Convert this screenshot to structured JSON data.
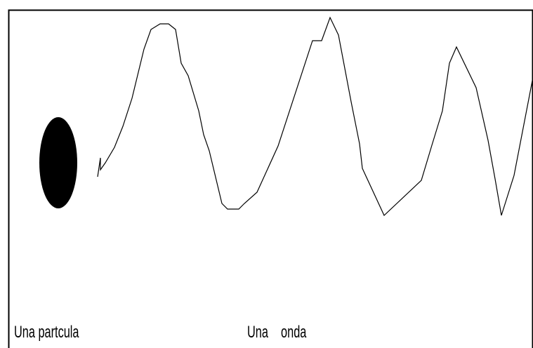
{
  "labels": [
    "Una partcula",
    "Una    onda"
  ]
}
